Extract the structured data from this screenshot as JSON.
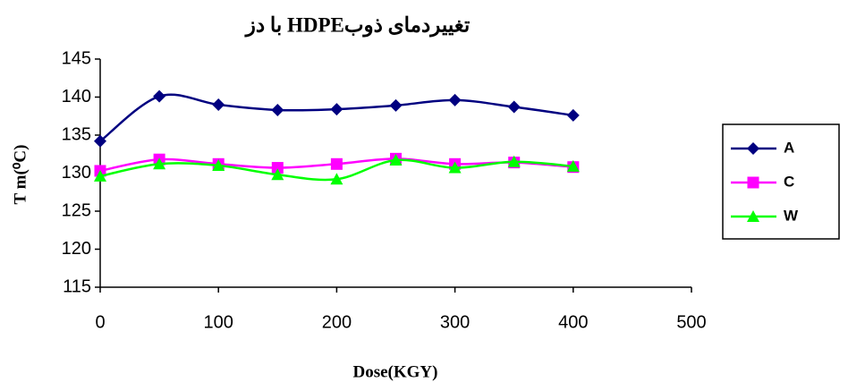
{
  "chart_data": {
    "type": "line",
    "title": "تغییردمای ذوبHDPE با دز",
    "x_label": "Dose(KGY)",
    "y_label": "T m(⁰C)",
    "x": [
      0,
      50,
      100,
      150,
      200,
      250,
      300,
      350,
      400
    ],
    "series": [
      {
        "name": "A",
        "color": "#000080",
        "marker": "diamond",
        "values": [
          134.2,
          140.1,
          139.0,
          138.3,
          138.4,
          138.9,
          139.6,
          138.7,
          137.6
        ]
      },
      {
        "name": "C",
        "color": "#ff00ff",
        "marker": "square",
        "values": [
          130.3,
          131.8,
          131.2,
          130.7,
          131.2,
          131.9,
          131.2,
          131.4,
          130.8
        ]
      },
      {
        "name": "W",
        "color": "#00ff00",
        "marker": "triangle",
        "values": [
          129.6,
          131.2,
          131.0,
          129.8,
          129.2,
          131.7,
          130.7,
          131.5,
          130.9
        ]
      }
    ],
    "xlim": [
      0,
      500
    ],
    "xticks": [
      0,
      100,
      200,
      300,
      400,
      500
    ],
    "ylim": [
      115,
      145
    ],
    "yticks": [
      115,
      120,
      125,
      130,
      135,
      140,
      145
    ],
    "grid": false,
    "legend": "right"
  }
}
